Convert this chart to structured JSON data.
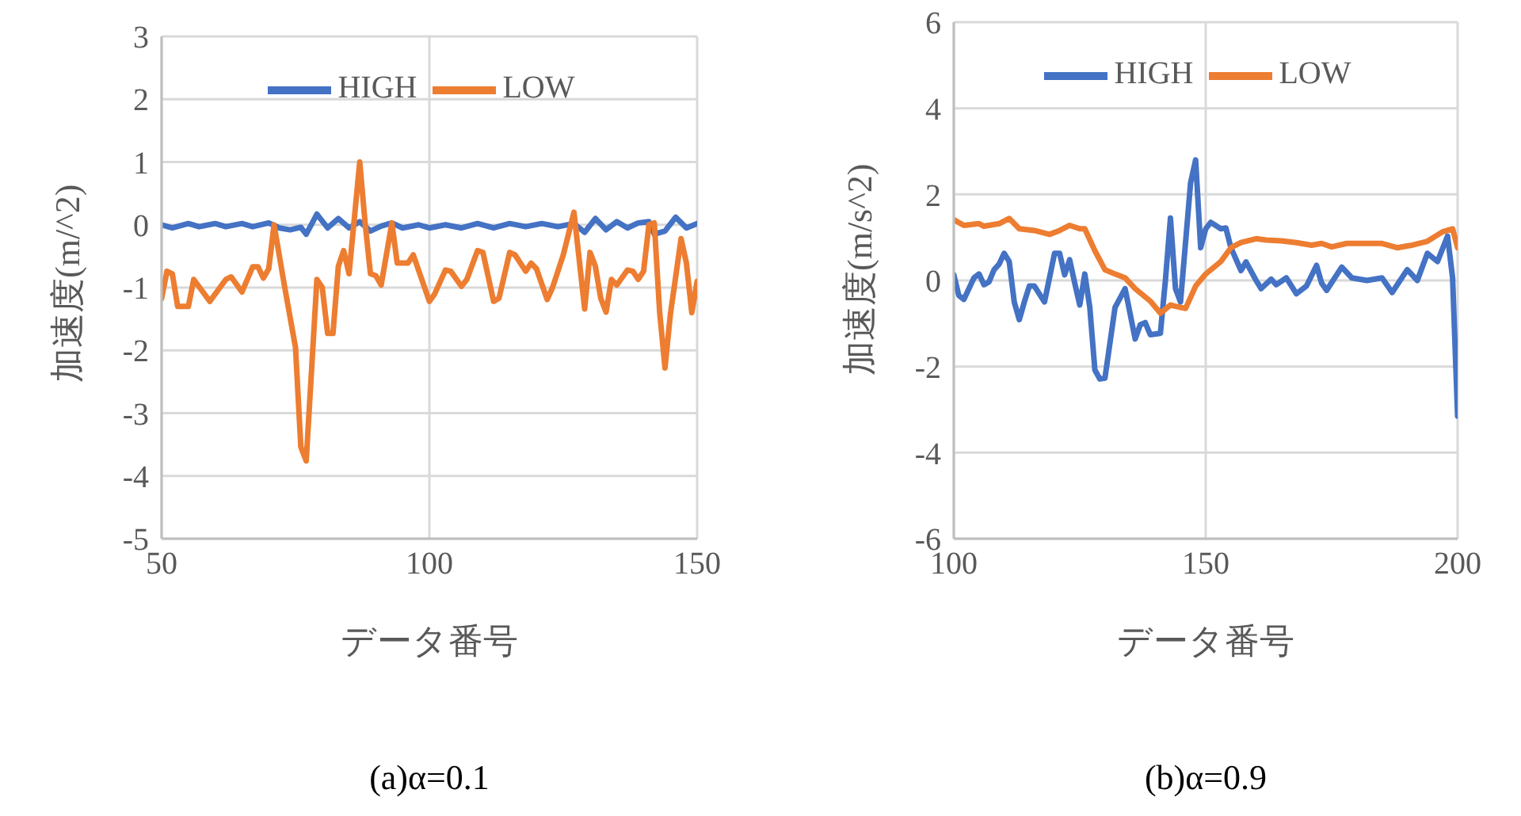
{
  "chart_data": [
    {
      "type": "line",
      "xlabel": "データ番号",
      "ylabel": "加速度(m/^2)",
      "xlim": [
        50,
        150
      ],
      "xticks": [
        50,
        100,
        150
      ],
      "ylim": [
        -5,
        3
      ],
      "yticks": [
        -5,
        -4,
        -3,
        -2,
        -1,
        0,
        1,
        2,
        3
      ],
      "grid": true,
      "legend": "top",
      "marker": "none",
      "line_style": "solid",
      "annotations": [
        "(a)α=0.1"
      ],
      "series": [
        {
          "name": "HIGH",
          "color": "#4472c4",
          "x": [
            50,
            52,
            55,
            57,
            60,
            62,
            65,
            67,
            70,
            72,
            74,
            76,
            77,
            79,
            81,
            83,
            85,
            87,
            89,
            91,
            93,
            95,
            98,
            100,
            103,
            106,
            109,
            112,
            115,
            118,
            121,
            124,
            127,
            129,
            131,
            133,
            135,
            137,
            139,
            141,
            142,
            144,
            146,
            148,
            150
          ],
          "values": [
            0,
            -0.05,
            0.02,
            -0.03,
            0.02,
            -0.03,
            0.02,
            -0.03,
            0.03,
            -0.05,
            -0.08,
            -0.04,
            -0.15,
            0.17,
            -0.05,
            0.1,
            -0.05,
            0.05,
            -0.1,
            -0.02,
            0.03,
            -0.05,
            0,
            -0.05,
            0,
            -0.05,
            0.02,
            -0.05,
            0.02,
            -0.03,
            0.02,
            -0.03,
            0.02,
            -0.12,
            0.1,
            -0.08,
            0.05,
            -0.05,
            0.03,
            0.05,
            -0.15,
            -0.1,
            0.12,
            -0.05,
            0.02
          ]
        },
        {
          "name": "LOW",
          "color": "#ed7d31",
          "x": [
            50,
            51,
            52,
            53,
            55,
            56,
            59,
            62,
            63,
            65,
            67,
            68,
            69,
            70,
            71,
            73,
            75,
            76,
            77,
            79,
            80,
            81,
            82,
            83,
            84,
            85,
            87,
            88,
            89,
            90,
            91,
            93,
            94,
            96,
            97,
            100,
            101,
            103,
            104,
            106,
            107,
            109,
            110,
            112,
            113,
            115,
            116,
            118,
            119,
            120,
            122,
            123,
            125,
            127,
            129,
            130,
            131,
            132,
            133,
            134,
            135,
            137,
            138,
            139,
            140,
            141,
            142,
            143,
            144,
            145,
            147,
            148,
            149,
            150
          ],
          "values": [
            -1.17,
            -0.74,
            -0.78,
            -1.3,
            -1.3,
            -0.87,
            -1.22,
            -0.87,
            -0.83,
            -1.07,
            -0.67,
            -0.67,
            -0.85,
            -0.7,
            0,
            -1.0,
            -1.95,
            -3.54,
            -3.76,
            -0.87,
            -1.0,
            -1.73,
            -1.73,
            -0.66,
            -0.41,
            -0.78,
            1.0,
            0.03,
            -0.78,
            -0.81,
            -0.96,
            0.03,
            -0.61,
            -0.61,
            -0.48,
            -1.22,
            -1.1,
            -0.72,
            -0.74,
            -0.98,
            -0.87,
            -0.41,
            -0.44,
            -1.22,
            -1.17,
            -0.44,
            -0.48,
            -0.74,
            -0.61,
            -0.7,
            -1.19,
            -1.0,
            -0.48,
            0.2,
            -1.34,
            -0.44,
            -0.66,
            -1.17,
            -1.39,
            -0.87,
            -0.96,
            -0.72,
            -0.74,
            -0.87,
            -0.74,
            0,
            0.03,
            -1.39,
            -2.28,
            -1.43,
            -0.22,
            -0.61,
            -1.4,
            -0.9
          ]
        }
      ]
    },
    {
      "type": "line",
      "xlabel": "データ番号",
      "ylabel": "加速度(m/s^2)",
      "xlim": [
        100,
        200
      ],
      "xticks": [
        100,
        150,
        200
      ],
      "ylim": [
        -6,
        6
      ],
      "yticks": [
        -6,
        -4,
        -2,
        0,
        2,
        4,
        6
      ],
      "grid": true,
      "legend": "top",
      "marker": "none",
      "line_style": "solid",
      "annotations": [
        "(b)α=0.9"
      ],
      "series": [
        {
          "name": "HIGH",
          "color": "#4472c4",
          "x": [
            100,
            101,
            102,
            104,
            105,
            106,
            107,
            108,
            109,
            110,
            111,
            112,
            113,
            114,
            115,
            116,
            118,
            120,
            121,
            122,
            123,
            124,
            125,
            126,
            127,
            128,
            129,
            130,
            132,
            134,
            136,
            137,
            138,
            139,
            141,
            142,
            143,
            144,
            145,
            147,
            148,
            149,
            150,
            151,
            153,
            154,
            155,
            157,
            158,
            160,
            161,
            163,
            164,
            166,
            168,
            170,
            172,
            173,
            174,
            177,
            179,
            182,
            185,
            187,
            190,
            192,
            194,
            196,
            198,
            199,
            200
          ],
          "values": [
            0.13,
            -0.35,
            -0.44,
            0.06,
            0.15,
            -0.1,
            -0.03,
            0.25,
            0.38,
            0.63,
            0.44,
            -0.5,
            -0.91,
            -0.5,
            -0.13,
            -0.13,
            -0.5,
            0.63,
            0.63,
            0.13,
            0.48,
            -0.06,
            -0.57,
            0.15,
            -0.63,
            -2.08,
            -2.29,
            -2.27,
            -0.63,
            -0.19,
            -1.36,
            -1.03,
            -0.98,
            -1.26,
            -1.23,
            0,
            1.45,
            -0.19,
            -0.5,
            2.27,
            2.8,
            0.76,
            1.2,
            1.35,
            1.2,
            1.22,
            0.76,
            0.23,
            0.43,
            0,
            -0.19,
            0.03,
            -0.1,
            0.06,
            -0.31,
            -0.13,
            0.35,
            -0.06,
            -0.23,
            0.31,
            0.06,
            0,
            0.06,
            -0.28,
            0.25,
            0,
            0.63,
            0.44,
            1.03,
            0.06,
            -3.15
          ]
        },
        {
          "name": "LOW",
          "color": "#ed7d31",
          "x": [
            100,
            102,
            105,
            106,
            109,
            111,
            113,
            116,
            119,
            121,
            123,
            125,
            126,
            128,
            130,
            132,
            134,
            136,
            139,
            141,
            143,
            144,
            146,
            148,
            150,
            153,
            155,
            157,
            160,
            162,
            165,
            168,
            171,
            173,
            175,
            178,
            182,
            185,
            188,
            191,
            194,
            197,
            199,
            200
          ],
          "values": [
            1.41,
            1.28,
            1.32,
            1.26,
            1.32,
            1.44,
            1.2,
            1.16,
            1.07,
            1.16,
            1.28,
            1.2,
            1.2,
            0.69,
            0.25,
            0.15,
            0.06,
            -0.19,
            -0.48,
            -0.76,
            -0.57,
            -0.6,
            -0.65,
            -0.13,
            0.15,
            0.44,
            0.76,
            0.88,
            0.97,
            0.94,
            0.92,
            0.88,
            0.82,
            0.86,
            0.78,
            0.86,
            0.86,
            0.86,
            0.76,
            0.82,
            0.91,
            1.13,
            1.2,
            0.76
          ]
        }
      ]
    }
  ]
}
